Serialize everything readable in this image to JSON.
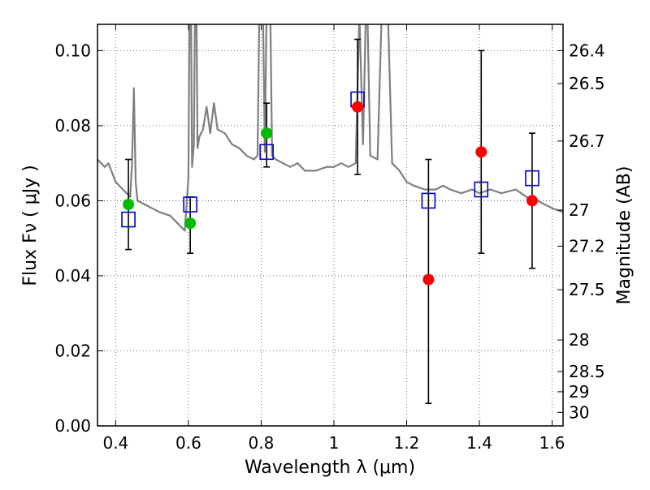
{
  "chart_data": {
    "type": "scatter",
    "xlabel": "Wavelength  λ (μm)",
    "ylabel": "Flux  Fν  ( μJy )",
    "y2label": "Magnitude (AB)",
    "xlim": [
      0.35,
      1.63
    ],
    "ylim": [
      0.0,
      0.107
    ],
    "grid": true,
    "x_ticks": [
      0.4,
      0.6,
      0.8,
      1.0,
      1.2,
      1.4,
      1.6
    ],
    "x_tick_labels": [
      "0.4",
      "0.6",
      "0.8",
      "1",
      "1.2",
      "1.4",
      "1.6"
    ],
    "y_ticks": [
      0.0,
      0.02,
      0.04,
      0.06,
      0.08,
      0.1
    ],
    "y_tick_labels": [
      "0.00",
      "0.02",
      "0.04",
      "0.06",
      "0.08",
      "0.10"
    ],
    "mag_ticks": [
      {
        "label": "26.4",
        "flux": 0.1
      },
      {
        "label": "26.5",
        "flux": 0.0912
      },
      {
        "label": "26.7",
        "flux": 0.0759
      },
      {
        "label": "27",
        "flux": 0.0575
      },
      {
        "label": "27.2",
        "flux": 0.0479
      },
      {
        "label": "27.5",
        "flux": 0.0363
      },
      {
        "label": "28",
        "flux": 0.0229
      },
      {
        "label": "28.5",
        "flux": 0.0145
      },
      {
        "label": "29",
        "flux": 0.0091
      },
      {
        "label": "30",
        "flux": 0.0036
      }
    ],
    "series": [
      {
        "kind": "line",
        "color": "#7f7f7f",
        "x": [
          0.35,
          0.37,
          0.38,
          0.4,
          0.42,
          0.43,
          0.44,
          0.445,
          0.45,
          0.455,
          0.46,
          0.48,
          0.5,
          0.52,
          0.55,
          0.57,
          0.58,
          0.59,
          0.6,
          0.605,
          0.61,
          0.615,
          0.62,
          0.625,
          0.63,
          0.64,
          0.65,
          0.66,
          0.67,
          0.68,
          0.7,
          0.72,
          0.74,
          0.76,
          0.78,
          0.79,
          0.8,
          0.81,
          0.82,
          0.83,
          0.84,
          0.86,
          0.88,
          0.9,
          0.92,
          0.95,
          0.98,
          1.0,
          1.02,
          1.04,
          1.06,
          1.07,
          1.08,
          1.09,
          1.1,
          1.12,
          1.14,
          1.16,
          1.18,
          1.2,
          1.22,
          1.25,
          1.28,
          1.3,
          1.32,
          1.35,
          1.38,
          1.4,
          1.43,
          1.46,
          1.5,
          1.53,
          1.56,
          1.58,
          1.6,
          1.63
        ],
        "y": [
          0.071,
          0.069,
          0.07,
          0.065,
          0.063,
          0.062,
          0.061,
          0.07,
          0.09,
          0.065,
          0.06,
          0.059,
          0.058,
          0.057,
          0.056,
          0.054,
          0.053,
          0.052,
          0.066,
          0.14,
          0.069,
          0.075,
          0.135,
          0.074,
          0.077,
          0.079,
          0.085,
          0.078,
          0.086,
          0.079,
          0.078,
          0.075,
          0.074,
          0.072,
          0.071,
          0.072,
          0.15,
          0.073,
          0.15,
          0.072,
          0.071,
          0.07,
          0.069,
          0.07,
          0.068,
          0.068,
          0.069,
          0.069,
          0.07,
          0.069,
          0.07,
          0.11,
          0.075,
          0.12,
          0.072,
          0.071,
          0.14,
          0.07,
          0.068,
          0.065,
          0.064,
          0.063,
          0.063,
          0.064,
          0.063,
          0.062,
          0.063,
          0.062,
          0.063,
          0.062,
          0.063,
          0.061,
          0.06,
          0.059,
          0.058,
          0.057
        ]
      },
      {
        "kind": "error_bars",
        "color": "#000000",
        "x": [
          0.435,
          0.605,
          0.815,
          1.065,
          1.26,
          1.405,
          1.545
        ],
        "ylow": [
          0.047,
          0.046,
          0.069,
          0.067,
          0.006,
          0.046,
          0.042
        ],
        "yhigh": [
          0.071,
          0.061,
          0.086,
          0.103,
          0.071,
          0.1,
          0.078
        ]
      },
      {
        "kind": "scatter",
        "marker": "square",
        "color": "#0000cc",
        "x": [
          0.435,
          0.605,
          0.815,
          1.065,
          1.26,
          1.405,
          1.545
        ],
        "y": [
          0.055,
          0.059,
          0.073,
          0.087,
          0.06,
          0.063,
          0.066
        ]
      },
      {
        "kind": "scatter",
        "marker": "circle",
        "color": "#00bb00",
        "x": [
          0.435,
          0.605,
          0.815
        ],
        "y": [
          0.059,
          0.054,
          0.078
        ]
      },
      {
        "kind": "scatter",
        "marker": "circle",
        "color": "#ff0000",
        "x": [
          1.065,
          1.26,
          1.405,
          1.545
        ],
        "y": [
          0.085,
          0.039,
          0.073,
          0.06
        ]
      }
    ]
  }
}
